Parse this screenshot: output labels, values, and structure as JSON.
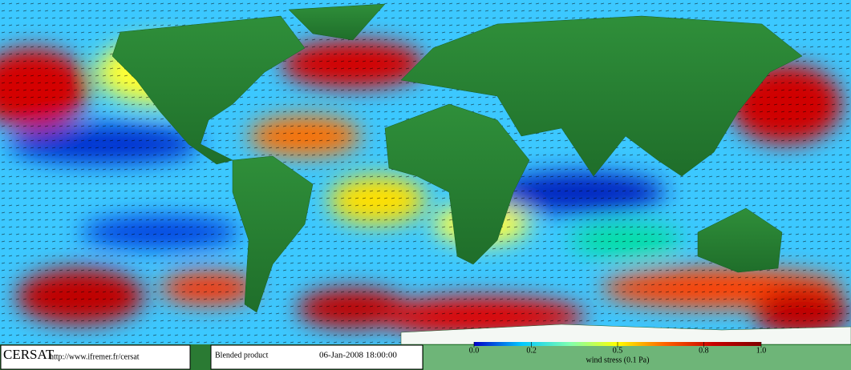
{
  "credits": {
    "logo": "CERSAT",
    "url": "http://www.ifremer.fr/cersat"
  },
  "product": "Blended product",
  "timestamp": "06-Jan-2008 18:00:00",
  "colorbar": {
    "lim": [
      0,
      1
    ],
    "ticks": [
      {
        "value": 0,
        "label": "0.0"
      },
      {
        "value": 0.2,
        "label": "0.2"
      },
      {
        "value": 0.5,
        "label": "0.5"
      },
      {
        "value": 0.8,
        "label": "0.8"
      },
      {
        "value": 1,
        "label": "1.0"
      }
    ],
    "label": "wind stress (0.1 Pa)",
    "colors": [
      "#0000c8",
      "#00c8ff",
      "#7fffb0",
      "#ffff00",
      "#ff6000",
      "#c80000",
      "#800000"
    ]
  }
}
